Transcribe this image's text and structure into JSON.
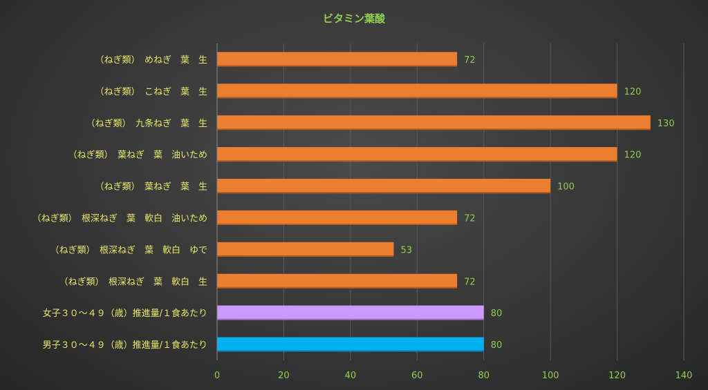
{
  "chart_data": {
    "type": "bar",
    "orientation": "horizontal",
    "title": "ビタミン葉酸",
    "xlabel": "",
    "ylabel": "",
    "xlim": [
      0,
      140
    ],
    "x_ticks": [
      0,
      20,
      40,
      60,
      80,
      100,
      120,
      140
    ],
    "grid": true,
    "legend": "none",
    "categories": [
      "（ねぎ類）　めねぎ　葉　生",
      "（ねぎ類）　こねぎ　葉　生",
      "（ねぎ類）　九条ねぎ　葉　生",
      "（ねぎ類）　葉ねぎ　葉　油いため",
      "（ねぎ類）　葉ねぎ　葉　生",
      "（ねぎ類）　根深ねぎ　葉　軟白　油いため",
      "（ねぎ類）　根深ねぎ　葉　軟白　ゆで",
      "（ねぎ類）　根深ねぎ　葉　軟白　生",
      "女子３０～４９（歳）推進量/１食あたり",
      "男子３０～４９（歳）推進量/１食あたり"
    ],
    "values": [
      72,
      120,
      130,
      120,
      100,
      72,
      53,
      72,
      80,
      80
    ],
    "bar_colors": [
      "#ed7d31",
      "#ed7d31",
      "#ed7d31",
      "#ed7d31",
      "#ed7d31",
      "#ed7d31",
      "#ed7d31",
      "#ed7d31",
      "#cc99ff",
      "#00b0f0"
    ]
  },
  "colors": {
    "title": "#8fce4f",
    "category_text": "#e8e86a",
    "value_text": "#8fce4f",
    "grid": "#5a5a5a"
  }
}
